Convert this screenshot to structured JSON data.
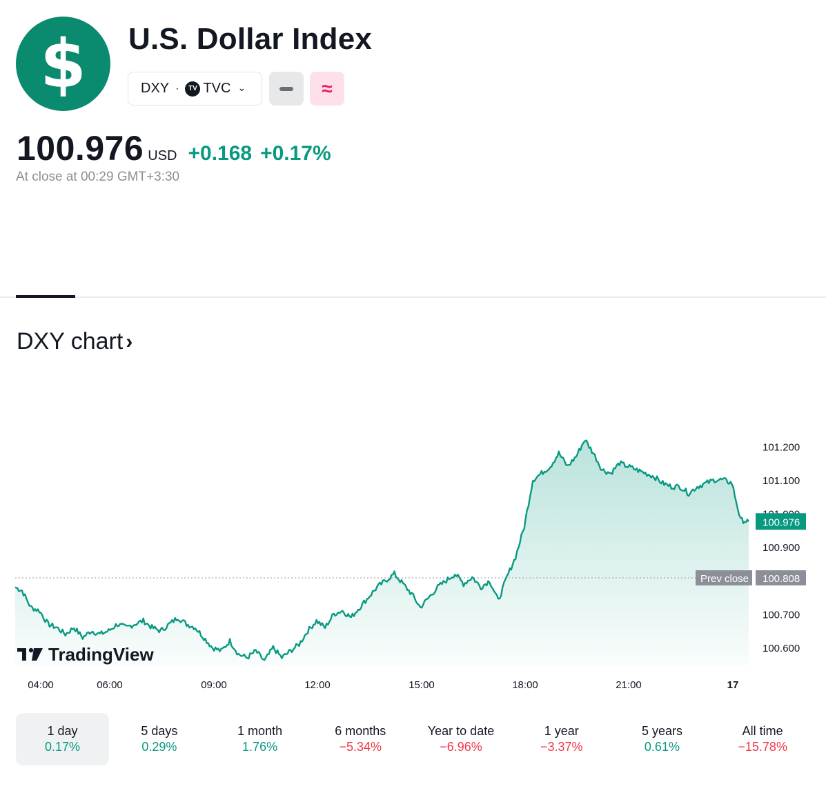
{
  "header": {
    "logo_symbol": "$",
    "title": "U.S. Dollar Index",
    "symbol": "DXY",
    "exchange_badge": "TV",
    "exchange": "TVC",
    "price": "100.976",
    "currency": "USD",
    "change": "+0.168",
    "change_pct": "+0.17%",
    "close_note": "At close at 00:29 GMT+3:30"
  },
  "chart_section": {
    "heading": "DXY chart",
    "arrow": "›",
    "watermark": "TradingView"
  },
  "colors": {
    "line": "#089981",
    "positive": "#089981",
    "negative": "#f23645",
    "logo": "#0a8a6e"
  },
  "chart_data": {
    "type": "area",
    "x_tick_labels": [
      "04:00",
      "06:00",
      "09:00",
      "12:00",
      "15:00",
      "18:00",
      "21:00",
      "17"
    ],
    "y_tick_labels": [
      "101.200",
      "101.100",
      "101.000",
      "100.900",
      "100.700",
      "100.600"
    ],
    "ylim": [
      100.55,
      101.25
    ],
    "prev_close_label": "Prev close",
    "prev_close": "100.808",
    "last_price": "100.976",
    "series": [
      {
        "x": [
          "03:18",
          "03:30",
          "03:45",
          "04:00",
          "04:15",
          "04:30",
          "04:45",
          "05:00",
          "05:15",
          "05:30",
          "05:45",
          "06:00",
          "06:15",
          "06:30",
          "06:45",
          "07:00",
          "07:15",
          "07:30",
          "07:45",
          "08:00",
          "08:15",
          "08:30",
          "08:45",
          "09:00",
          "09:15",
          "09:30",
          "09:45",
          "10:00",
          "10:15",
          "10:30",
          "10:45",
          "11:00",
          "11:15",
          "11:30",
          "11:45",
          "12:00",
          "12:15",
          "12:30",
          "12:45",
          "13:00",
          "13:15",
          "13:30",
          "13:45",
          "14:00",
          "14:15",
          "14:30",
          "14:45",
          "15:00",
          "15:15",
          "15:30",
          "15:45",
          "16:00",
          "16:15",
          "16:30",
          "16:45",
          "17:00",
          "17:15",
          "17:30",
          "17:45",
          "18:00",
          "18:15",
          "18:30",
          "18:45",
          "19:00",
          "19:15",
          "19:30",
          "19:45",
          "20:00",
          "20:15",
          "20:30",
          "20:45",
          "21:00",
          "21:15",
          "21:30",
          "21:45",
          "22:00",
          "22:15",
          "22:30",
          "22:45",
          "23:00",
          "23:15",
          "23:30",
          "23:45",
          "00:00",
          "00:15",
          "00:29"
        ],
        "values": [
          100.78,
          100.77,
          100.72,
          100.71,
          100.67,
          100.66,
          100.64,
          100.66,
          100.63,
          100.65,
          100.64,
          100.65,
          100.67,
          100.66,
          100.67,
          100.68,
          100.66,
          100.65,
          100.67,
          100.69,
          100.67,
          100.66,
          100.63,
          100.6,
          100.59,
          100.62,
          100.58,
          100.57,
          100.59,
          100.56,
          100.6,
          100.57,
          100.59,
          100.61,
          100.65,
          100.68,
          100.66,
          100.7,
          100.71,
          100.69,
          100.72,
          100.75,
          100.78,
          100.8,
          100.82,
          100.79,
          100.76,
          100.72,
          100.75,
          100.78,
          100.8,
          100.82,
          100.79,
          100.81,
          100.78,
          100.8,
          100.74,
          100.81,
          100.87,
          100.96,
          101.1,
          101.12,
          101.14,
          101.18,
          101.14,
          101.17,
          101.22,
          101.18,
          101.13,
          101.12,
          101.15,
          101.14,
          101.13,
          101.12,
          101.11,
          101.09,
          101.08,
          101.08,
          101.06,
          101.08,
          101.09,
          101.1,
          101.1,
          101.09,
          100.98,
          100.976
        ]
      }
    ],
    "grid": false,
    "watermark_position": "bottom-left"
  },
  "ranges": [
    {
      "label": "1 day",
      "value": "0.17%",
      "trend": "pos",
      "active": true
    },
    {
      "label": "5 days",
      "value": "0.29%",
      "trend": "pos"
    },
    {
      "label": "1 month",
      "value": "1.76%",
      "trend": "pos"
    },
    {
      "label": "6 months",
      "value": "−5.34%",
      "trend": "neg"
    },
    {
      "label": "Year to date",
      "value": "−6.96%",
      "trend": "neg"
    },
    {
      "label": "1 year",
      "value": "−3.37%",
      "trend": "neg"
    },
    {
      "label": "5 years",
      "value": "0.61%",
      "trend": "pos"
    },
    {
      "label": "All time",
      "value": "−15.78%",
      "trend": "neg"
    }
  ]
}
